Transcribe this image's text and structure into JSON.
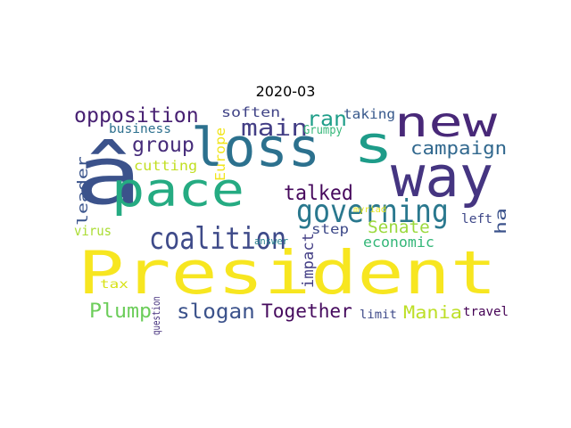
{
  "title": "2020-03",
  "words": [
    {
      "text": "President",
      "color": "#F7E620",
      "vertical": false
    },
    {
      "text": "â",
      "color": "#3B528B",
      "vertical": false
    },
    {
      "text": "pace",
      "color": "#25AB82",
      "vertical": false
    },
    {
      "text": "loss",
      "color": "#2C718E",
      "vertical": false
    },
    {
      "text": "s",
      "color": "#1E9C89",
      "vertical": false
    },
    {
      "text": "way",
      "color": "#453581",
      "vertical": false
    },
    {
      "text": "new",
      "color": "#482878",
      "vertical": false
    },
    {
      "text": "governing",
      "color": "#2A788E",
      "vertical": false
    },
    {
      "text": "coalition",
      "color": "#3E4A89",
      "vertical": false
    },
    {
      "text": "opposition",
      "color": "#482173",
      "vertical": false
    },
    {
      "text": "main",
      "color": "#433E85",
      "vertical": false
    },
    {
      "text": "ran",
      "color": "#1F9E89",
      "vertical": false
    },
    {
      "text": "group",
      "color": "#472D7B",
      "vertical": false
    },
    {
      "text": "talked",
      "color": "#46085C",
      "vertical": false
    },
    {
      "text": "campaign",
      "color": "#31688E",
      "vertical": false
    },
    {
      "text": "Senate",
      "color": "#9BD93C",
      "vertical": false
    },
    {
      "text": "ha",
      "color": "#3B528B",
      "vertical": true
    },
    {
      "text": "leader",
      "color": "#3A548C",
      "vertical": true
    },
    {
      "text": "Together",
      "color": "#460B5E",
      "vertical": false
    },
    {
      "text": "Mania",
      "color": "#BDDF26",
      "vertical": false
    },
    {
      "text": "slogan",
      "color": "#3B528B",
      "vertical": false
    },
    {
      "text": "Plump",
      "color": "#6CCD5A",
      "vertical": false
    },
    {
      "text": "economic",
      "color": "#35B779",
      "vertical": false
    },
    {
      "text": "impact",
      "color": "#433E85",
      "vertical": true
    },
    {
      "text": "soften",
      "color": "#414487",
      "vertical": false
    },
    {
      "text": "taking",
      "color": "#38598C",
      "vertical": false
    },
    {
      "text": "business",
      "color": "#2D708E",
      "vertical": false
    },
    {
      "text": "Grumpy",
      "color": "#35B779",
      "vertical": false
    },
    {
      "text": "cutting",
      "color": "#C2DF23",
      "vertical": false
    },
    {
      "text": "Europe",
      "color": "#F1E51D",
      "vertical": true
    },
    {
      "text": "step",
      "color": "#3E4A89",
      "vertical": false
    },
    {
      "text": "left",
      "color": "#3F4889",
      "vertical": false
    },
    {
      "text": "virus",
      "color": "#AADC32",
      "vertical": false
    },
    {
      "text": "myriad",
      "color": "#E5E419",
      "vertical": false
    },
    {
      "text": "answer",
      "color": "#26818E",
      "vertical": false
    },
    {
      "text": "tax",
      "color": "#D8E219",
      "vertical": false
    },
    {
      "text": "question",
      "color": "#46327E",
      "vertical": true
    },
    {
      "text": "limit",
      "color": "#3E4A89",
      "vertical": false
    },
    {
      "text": "travel",
      "color": "#440154",
      "vertical": false
    }
  ]
}
